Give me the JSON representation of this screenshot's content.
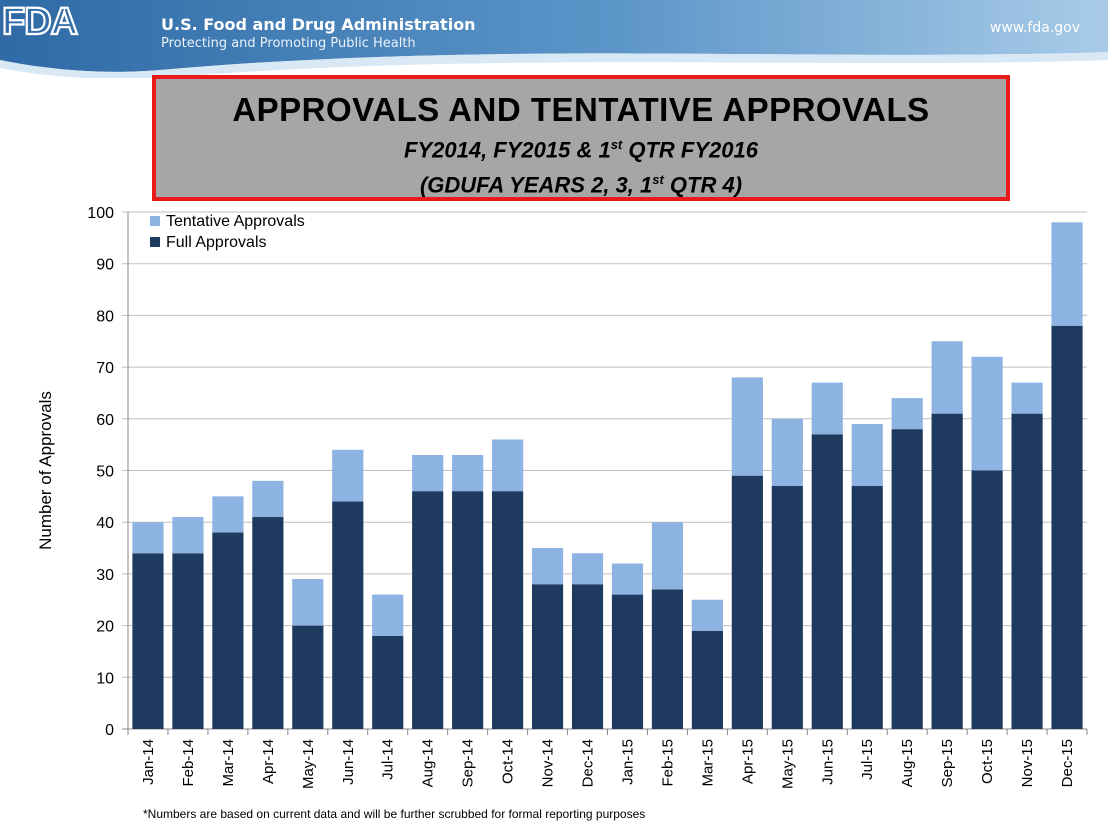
{
  "header": {
    "logo_text": "FDA",
    "agency": "U.S. Food and Drug Administration",
    "tagline": "Protecting and Promoting Public Health",
    "website": "www.fda.gov",
    "colors": {
      "banner": "#4a86bd",
      "banner_light": "#8fb9e0"
    }
  },
  "title": {
    "main": "APPROVALS AND TENTATIVE APPROVALS",
    "line2_a": "FY2014, FY2015 & 1",
    "line2_sup": "st",
    "line2_b": " QTR FY2016",
    "line3_a": "(GDUFA YEARS 2, 3, 1",
    "line3_sup": "st",
    "line3_b": " QTR 4)"
  },
  "chart_data": {
    "type": "bar",
    "stacked": true,
    "categories": [
      "Jan-14",
      "Feb-14",
      "Mar-14",
      "Apr-14",
      "May-14",
      "Jun-14",
      "Jul-14",
      "Aug-14",
      "Sep-14",
      "Oct-14",
      "Nov-14",
      "Dec-14",
      "Jan-15",
      "Feb-15",
      "Mar-15",
      "Apr-15",
      "May-15",
      "Jun-15",
      "Jul-15",
      "Aug-15",
      "Sep-15",
      "Oct-15",
      "Nov-15",
      "Dec-15"
    ],
    "series": [
      {
        "name": "Full Approvals",
        "color": "#1f3a5f",
        "values": [
          34,
          34,
          38,
          41,
          20,
          44,
          18,
          46,
          46,
          46,
          28,
          28,
          26,
          27,
          19,
          49,
          47,
          57,
          47,
          58,
          61,
          50,
          61,
          78
        ]
      },
      {
        "name": "Tentative Approvals",
        "color": "#8db3e2",
        "values": [
          6,
          7,
          7,
          7,
          9,
          10,
          8,
          7,
          7,
          10,
          7,
          6,
          6,
          13,
          6,
          19,
          13,
          10,
          12,
          6,
          14,
          22,
          6,
          20
        ]
      }
    ],
    "ylabel": "Number of Approvals",
    "ylim": [
      0,
      100
    ],
    "yticks": [
      0,
      10,
      20,
      30,
      40,
      50,
      60,
      70,
      80,
      90,
      100
    ],
    "grid": true,
    "legend_position": "top-left",
    "legend_order": [
      "Tentative Approvals",
      "Full Approvals"
    ]
  },
  "footnote": "*Numbers are based on current data and will be further scrubbed for formal reporting purposes"
}
